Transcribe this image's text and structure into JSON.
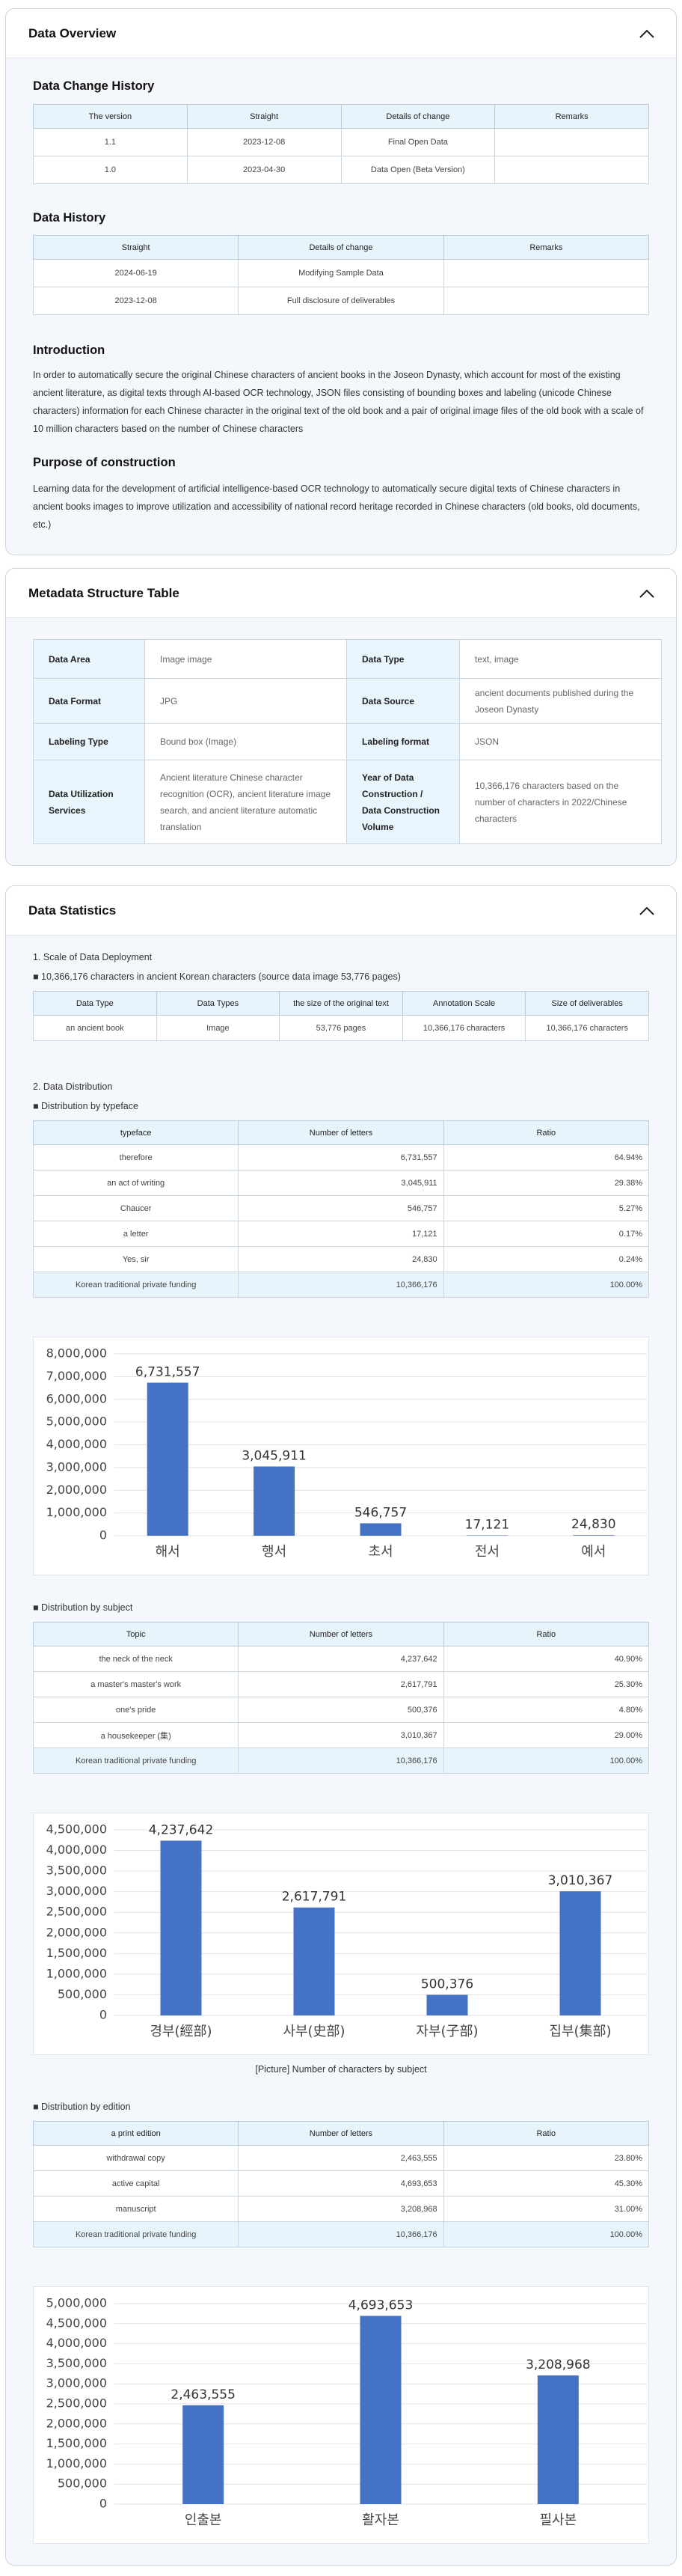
{
  "overview": {
    "title": "Data Overview",
    "change_history": {
      "title": "Data Change History",
      "columns": [
        "The version",
        "Straight",
        "Details of change",
        "Remarks"
      ],
      "rows": [
        [
          "1.1",
          "2023-12-08",
          "Final Open Data"
        ],
        [
          "1.0",
          "2023-04-30",
          "Data Open (Beta Version)"
        ]
      ]
    },
    "data_history": {
      "title": "Data History",
      "columns": [
        "Straight",
        "Details of change",
        "Remarks"
      ],
      "rows": [
        [
          "2024-06-19",
          "Modifying Sample Data"
        ],
        [
          "2023-12-08",
          "Full disclosure of deliverables"
        ]
      ]
    },
    "introduction": {
      "title": "Introduction",
      "text": "In order to automatically secure the original Chinese characters of ancient books in the Joseon Dynasty, which account for most of the existing ancient literature, as digital texts through AI-based OCR technology, JSON files consisting of bounding boxes and labeling (unicode Chinese characters) information for each Chinese character in the original text of the old book and a pair of original image files of the old book with a scale of 10 million characters based on the number of Chinese characters"
    },
    "purpose": {
      "title": "Purpose of construction",
      "text": "Learning data for the development of artificial intelligence-based OCR technology to automatically secure digital texts of Chinese characters in ancient books images to improve utilization and accessibility of national record heritage recorded in Chinese characters (old books, old documents, etc.)"
    }
  },
  "metadata": {
    "title": "Metadata Structure Table",
    "rows": [
      [
        "Data Area",
        "Image image",
        "Data Type",
        "text, image"
      ],
      [
        "Data Format",
        "JPG",
        "Data Source",
        "ancient documents published during the Joseon Dynasty"
      ],
      [
        "Labeling Type",
        "Bound box (Image)",
        "Labeling format",
        "JSON"
      ],
      [
        "Data Utilization Services",
        "Ancient literature Chinese character recognition (OCR), ancient literature image search, and ancient literature automatic translation",
        "Year of Data Construction / Data Construction Volume",
        "10,366,176 characters based on the number of characters in 2022/Chinese characters"
      ]
    ]
  },
  "statistics": {
    "title": "Data Statistics",
    "scale": {
      "heading": "1. Scale of Data Deployment",
      "note": "■ 10,366,176 characters in ancient Korean characters (source data image 53,776 pages)",
      "table": {
        "columns": [
          "Data Type",
          "Data Types",
          "the size of the original text",
          "Annotation Scale",
          "Size of deliverables"
        ],
        "rows": [
          [
            "an ancient book",
            "Image",
            "53,776 pages",
            "10,366,176 characters",
            "10,366,176 characters"
          ]
        ]
      }
    },
    "distribution": {
      "heading": "2. Data Distribution",
      "groups": [
        {
          "note": "■ Distribution by typeface",
          "table": {
            "columns": [
              "typeface",
              "Number of letters",
              "Ratio"
            ],
            "rows": [
              [
                "therefore",
                "6,731,557",
                "64.94%"
              ],
              [
                "an act of writing",
                "3,045,911",
                "29.38%"
              ],
              [
                "Chaucer",
                "546,757",
                "5.27%"
              ],
              [
                "a letter",
                "17,121",
                "0.17%"
              ],
              [
                "Yes, sir",
                "24,830",
                "0.24%"
              ],
              [
                "Korean traditional private funding",
                "10,366,176",
                "100.00%"
              ]
            ]
          },
          "chart": {
            "type": "bar",
            "color": "#4472c4",
            "categories": [
              "해서",
              "행서",
              "초서",
              "전서",
              "예서"
            ],
            "values": [
              6731557,
              3045911,
              546757,
              17121,
              24830
            ],
            "value_labels": [
              "6,731,557",
              "3,045,911",
              "546,757",
              "17,121",
              "24,830"
            ],
            "ylim": [
              0,
              8000000
            ],
            "yticks": [
              0,
              {
                "value": 1000000,
                "label": "1,000,000"
              },
              {
                "value": 2000000,
                "label": "2,000,000"
              },
              {
                "value": 3000000,
                "label": "3,000,000"
              },
              {
                "value": 4000000,
                "label": "4,000,000"
              },
              {
                "value": 5000000,
                "label": "5,000,000"
              },
              {
                "value": 6000000,
                "label": "6,000,000"
              },
              {
                "value": 7000000,
                "label": "7,000,000"
              },
              {
                "value": 8000000,
                "label": "8,000,000"
              }
            ],
            "grid": true
          }
        },
        {
          "note": "■ Distribution by subject",
          "table": {
            "columns": [
              "Topic",
              "Number of letters",
              "Ratio"
            ],
            "rows": [
              [
                "the neck of the neck",
                "4,237,642",
                "40.90%"
              ],
              [
                "a master's master's work",
                "2,617,791",
                "25.30%"
              ],
              [
                "one's pride",
                "500,376",
                "4.80%"
              ],
              [
                "a housekeeper (集)",
                "3,010,367",
                "29.00%"
              ],
              [
                "Korean traditional private funding",
                "10,366,176",
                "100.00%"
              ]
            ]
          },
          "chart": {
            "type": "bar",
            "color": "#4472c4",
            "categories": [
              "경부(經部)",
              "사부(史部)",
              "자부(子部)",
              "집부(集部)"
            ],
            "values": [
              4237642,
              2617791,
              500376,
              3010367
            ],
            "value_labels": [
              "4,237,642",
              "2,617,791",
              "500,376",
              "3,010,367"
            ],
            "ylim": [
              0,
              4500000
            ],
            "yticks": [
              0,
              {
                "value": 500000,
                "label": "500,000"
              },
              {
                "value": 1000000,
                "label": "1,000,000"
              },
              {
                "value": 1500000,
                "label": "1,500,000"
              },
              {
                "value": 2000000,
                "label": "2,000,000"
              },
              {
                "value": 2500000,
                "label": "2,500,000"
              },
              {
                "value": 3000000,
                "label": "3,000,000"
              },
              {
                "value": 3500000,
                "label": "3,500,000"
              },
              {
                "value": 4000000,
                "label": "4,000,000"
              },
              {
                "value": 4500000,
                "label": "4,500,000"
              }
            ],
            "grid": true
          },
          "caption": "[Picture] Number of characters by subject"
        },
        {
          "note": "■ Distribution by edition",
          "table": {
            "columns": [
              "a print edition",
              "Number of letters",
              "Ratio"
            ],
            "rows": [
              [
                "withdrawal copy",
                "2,463,555",
                "23.80%"
              ],
              [
                "active capital",
                "4,693,653",
                "45.30%"
              ],
              [
                "manuscript",
                "3,208,968",
                "31.00%"
              ],
              [
                "Korean traditional private funding",
                "10,366,176",
                "100.00%"
              ]
            ]
          },
          "chart": {
            "type": "bar",
            "color": "#4472c4",
            "categories": [
              "인출본",
              "활자본",
              "필사본"
            ],
            "values": [
              2463555,
              4693653,
              3208968
            ],
            "value_labels": [
              "2,463,555",
              "4,693,653",
              "3,208,968"
            ],
            "ylim": [
              0,
              5000000
            ],
            "yticks": [
              0,
              {
                "value": 500000,
                "label": "500,000"
              },
              {
                "value": 1000000,
                "label": "1,000,000"
              },
              {
                "value": 1500000,
                "label": "1,500,000"
              },
              {
                "value": 2000000,
                "label": "2,000,000"
              },
              {
                "value": 2500000,
                "label": "2,500,000"
              },
              {
                "value": 3000000,
                "label": "3,000,000"
              },
              {
                "value": 3500000,
                "label": "3,500,000"
              },
              {
                "value": 4000000,
                "label": "4,000,000"
              },
              {
                "value": 4500000,
                "label": "4,500,000"
              },
              {
                "value": 5000000,
                "label": "5,000,000"
              }
            ],
            "grid": true
          }
        }
      ]
    }
  }
}
